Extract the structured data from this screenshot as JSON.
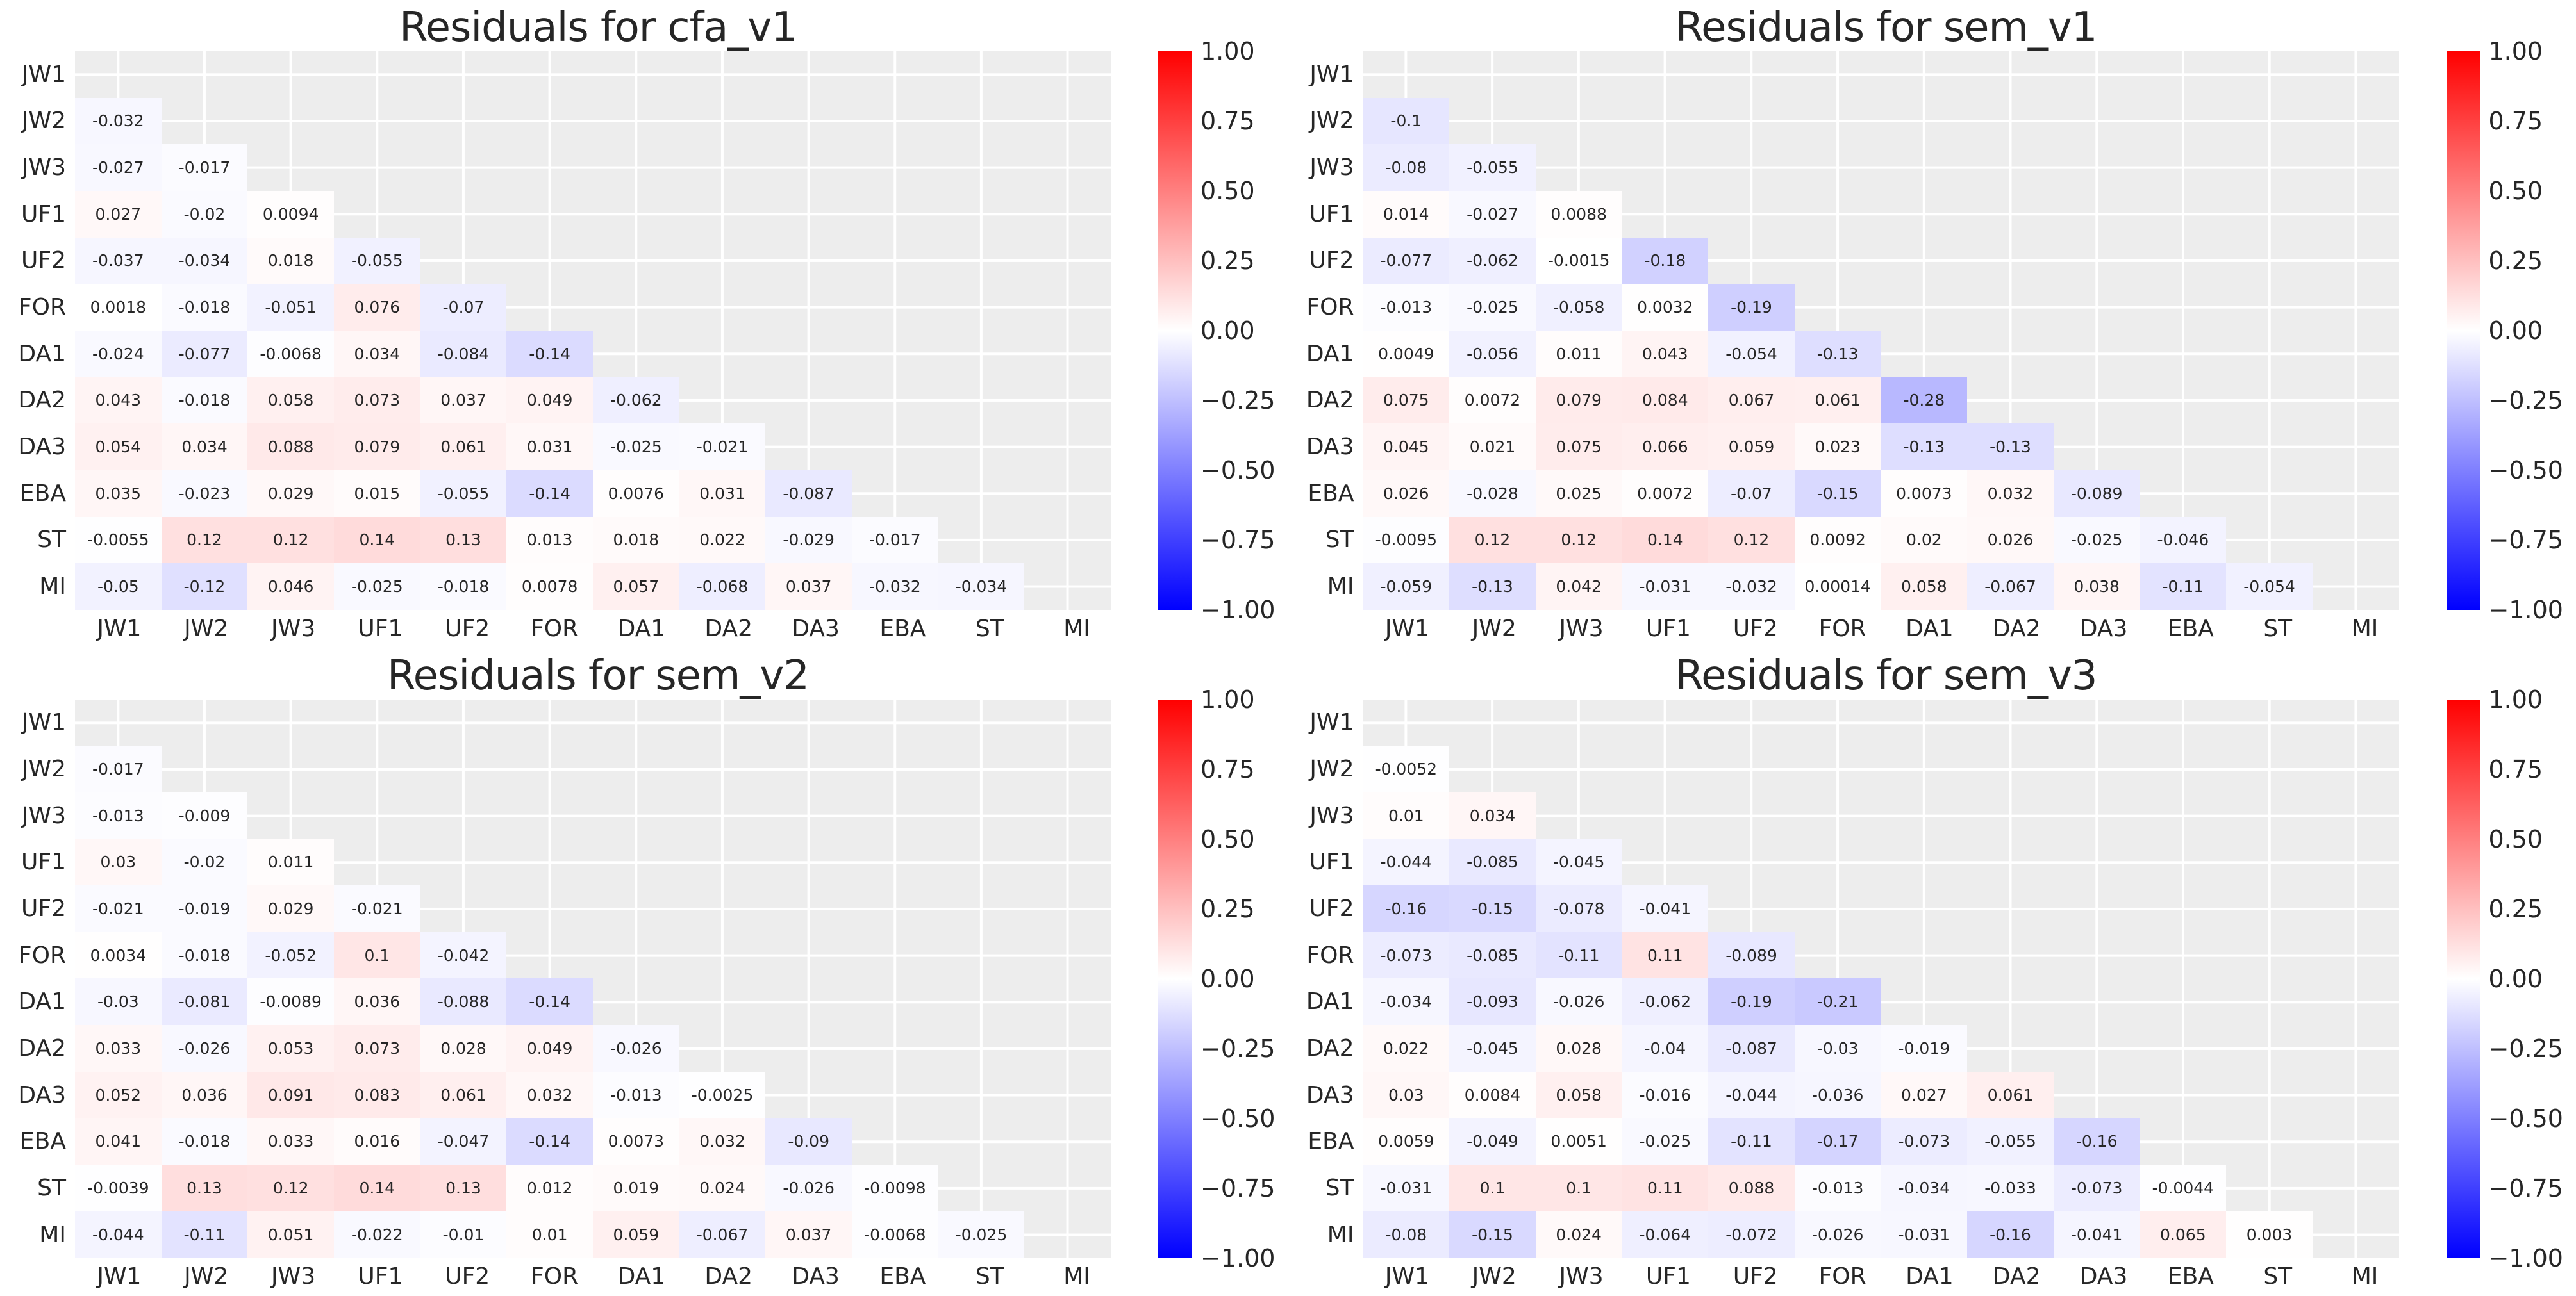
{
  "figure": {
    "background": "#ffffff",
    "panel_background": "#ededed",
    "grid_line_color": "#ffffff",
    "text_color": "#262626"
  },
  "axis_labels": [
    "JW1",
    "JW2",
    "JW3",
    "UF1",
    "UF2",
    "FOR",
    "DA1",
    "DA2",
    "DA3",
    "EBA",
    "ST",
    "MI"
  ],
  "colorbar": {
    "ticks": [
      "1.00",
      "0.75",
      "0.50",
      "0.25",
      "0.00",
      "−0.25",
      "−0.50",
      "−0.75",
      "−1.00"
    ],
    "top_color": "#ff0000",
    "mid_color": "#ffffff",
    "bottom_color": "#0000ff",
    "vmin": -1.0,
    "vmax": 1.0
  },
  "chart_data": [
    {
      "type": "heatmap",
      "title": "Residuals for cfa_v1",
      "colormap": "bwr",
      "vmin": -1.0,
      "vmax": 1.0,
      "mask": "upper-triangle-and-diagonal",
      "categories": [
        "JW1",
        "JW2",
        "JW3",
        "UF1",
        "UF2",
        "FOR",
        "DA1",
        "DA2",
        "DA3",
        "EBA",
        "ST",
        "MI"
      ],
      "values": [
        [],
        [
          "-0.032"
        ],
        [
          "-0.027",
          "-0.017"
        ],
        [
          "0.027",
          "-0.02",
          "0.0094"
        ],
        [
          "-0.037",
          "-0.034",
          "0.018",
          "-0.055"
        ],
        [
          "0.0018",
          "-0.018",
          "-0.051",
          "0.076",
          "-0.07"
        ],
        [
          "-0.024",
          "-0.077",
          "-0.0068",
          "0.034",
          "-0.084",
          "-0.14"
        ],
        [
          "0.043",
          "-0.018",
          "0.058",
          "0.073",
          "0.037",
          "0.049",
          "-0.062"
        ],
        [
          "0.054",
          "0.034",
          "0.088",
          "0.079",
          "0.061",
          "0.031",
          "-0.025",
          "-0.021"
        ],
        [
          "0.035",
          "-0.023",
          "0.029",
          "0.015",
          "-0.055",
          "-0.14",
          "0.0076",
          "0.031",
          "-0.087"
        ],
        [
          "-0.0055",
          "0.12",
          "0.12",
          "0.14",
          "0.13",
          "0.013",
          "0.018",
          "0.022",
          "-0.029",
          "-0.017"
        ],
        [
          "-0.05",
          "-0.12",
          "0.046",
          "-0.025",
          "-0.018",
          "0.0078",
          "0.057",
          "-0.068",
          "0.037",
          "-0.032",
          "-0.034"
        ]
      ]
    },
    {
      "type": "heatmap",
      "title": "Residuals for sem_v1",
      "colormap": "bwr",
      "vmin": -1.0,
      "vmax": 1.0,
      "mask": "upper-triangle-and-diagonal",
      "categories": [
        "JW1",
        "JW2",
        "JW3",
        "UF1",
        "UF2",
        "FOR",
        "DA1",
        "DA2",
        "DA3",
        "EBA",
        "ST",
        "MI"
      ],
      "values": [
        [],
        [
          "-0.1"
        ],
        [
          "-0.08",
          "-0.055"
        ],
        [
          "0.014",
          "-0.027",
          "0.0088"
        ],
        [
          "-0.077",
          "-0.062",
          "-0.0015",
          "-0.18"
        ],
        [
          "-0.013",
          "-0.025",
          "-0.058",
          "0.0032",
          "-0.19"
        ],
        [
          "0.0049",
          "-0.056",
          "0.011",
          "0.043",
          "-0.054",
          "-0.13"
        ],
        [
          "0.075",
          "0.0072",
          "0.079",
          "0.084",
          "0.067",
          "0.061",
          "-0.28"
        ],
        [
          "0.045",
          "0.021",
          "0.075",
          "0.066",
          "0.059",
          "0.023",
          "-0.13",
          "-0.13"
        ],
        [
          "0.026",
          "-0.028",
          "0.025",
          "0.0072",
          "-0.07",
          "-0.15",
          "0.0073",
          "0.032",
          "-0.089"
        ],
        [
          "-0.0095",
          "0.12",
          "0.12",
          "0.14",
          "0.12",
          "0.0092",
          "0.02",
          "0.026",
          "-0.025",
          "-0.046"
        ],
        [
          "-0.059",
          "-0.13",
          "0.042",
          "-0.031",
          "-0.032",
          "0.00014",
          "0.058",
          "-0.067",
          "0.038",
          "-0.11",
          "-0.054"
        ]
      ]
    },
    {
      "type": "heatmap",
      "title": "Residuals for sem_v2",
      "colormap": "bwr",
      "vmin": -1.0,
      "vmax": 1.0,
      "mask": "upper-triangle-and-diagonal",
      "categories": [
        "JW1",
        "JW2",
        "JW3",
        "UF1",
        "UF2",
        "FOR",
        "DA1",
        "DA2",
        "DA3",
        "EBA",
        "ST",
        "MI"
      ],
      "values": [
        [],
        [
          "-0.017"
        ],
        [
          "-0.013",
          "-0.009"
        ],
        [
          "0.03",
          "-0.02",
          "0.011"
        ],
        [
          "-0.021",
          "-0.019",
          "0.029",
          "-0.021"
        ],
        [
          "0.0034",
          "-0.018",
          "-0.052",
          "0.1",
          "-0.042"
        ],
        [
          "-0.03",
          "-0.081",
          "-0.0089",
          "0.036",
          "-0.088",
          "-0.14"
        ],
        [
          "0.033",
          "-0.026",
          "0.053",
          "0.073",
          "0.028",
          "0.049",
          "-0.026"
        ],
        [
          "0.052",
          "0.036",
          "0.091",
          "0.083",
          "0.061",
          "0.032",
          "-0.013",
          "-0.0025"
        ],
        [
          "0.041",
          "-0.018",
          "0.033",
          "0.016",
          "-0.047",
          "-0.14",
          "0.0073",
          "0.032",
          "-0.09"
        ],
        [
          "-0.0039",
          "0.13",
          "0.12",
          "0.14",
          "0.13",
          "0.012",
          "0.019",
          "0.024",
          "-0.026",
          "-0.0098"
        ],
        [
          "-0.044",
          "-0.11",
          "0.051",
          "-0.022",
          "-0.01",
          "0.01",
          "0.059",
          "-0.067",
          "0.037",
          "-0.0068",
          "-0.025"
        ]
      ]
    },
    {
      "type": "heatmap",
      "title": "Residuals for sem_v3",
      "colormap": "bwr",
      "vmin": -1.0,
      "vmax": 1.0,
      "mask": "upper-triangle-and-diagonal",
      "categories": [
        "JW1",
        "JW2",
        "JW3",
        "UF1",
        "UF2",
        "FOR",
        "DA1",
        "DA2",
        "DA3",
        "EBA",
        "ST",
        "MI"
      ],
      "values": [
        [],
        [
          "-0.0052"
        ],
        [
          "0.01",
          "0.034"
        ],
        [
          "-0.044",
          "-0.085",
          "-0.045"
        ],
        [
          "-0.16",
          "-0.15",
          "-0.078",
          "-0.041"
        ],
        [
          "-0.073",
          "-0.085",
          "-0.11",
          "0.11",
          "-0.089"
        ],
        [
          "-0.034",
          "-0.093",
          "-0.026",
          "-0.062",
          "-0.19",
          "-0.21"
        ],
        [
          "0.022",
          "-0.045",
          "0.028",
          "-0.04",
          "-0.087",
          "-0.03",
          "-0.019"
        ],
        [
          "0.03",
          "0.0084",
          "0.058",
          "-0.016",
          "-0.044",
          "-0.036",
          "0.027",
          "0.061"
        ],
        [
          "0.0059",
          "-0.049",
          "0.0051",
          "-0.025",
          "-0.11",
          "-0.17",
          "-0.073",
          "-0.055",
          "-0.16"
        ],
        [
          "-0.031",
          "0.1",
          "0.1",
          "0.11",
          "0.088",
          "-0.013",
          "-0.034",
          "-0.033",
          "-0.073",
          "-0.0044"
        ],
        [
          "-0.08",
          "-0.15",
          "0.024",
          "-0.064",
          "-0.072",
          "-0.026",
          "-0.031",
          "-0.16",
          "-0.041",
          "0.065",
          "0.003"
        ]
      ]
    }
  ]
}
